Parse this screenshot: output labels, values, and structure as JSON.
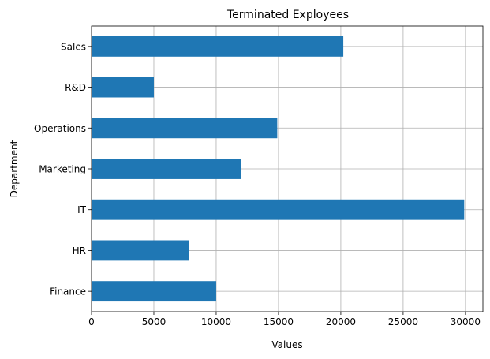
{
  "chart_data": {
    "type": "bar",
    "orientation": "horizontal",
    "title": "Terminated Exployees",
    "xlabel": "Values",
    "ylabel": "Department",
    "categories": [
      "Finance",
      "HR",
      "IT",
      "Marketing",
      "Operations",
      "R&D",
      "Sales"
    ],
    "values": [
      10000,
      7800,
      29900,
      12000,
      14900,
      5000,
      20200
    ],
    "xlim": [
      0,
      31400
    ],
    "xticks": [
      0,
      5000,
      10000,
      15000,
      20000,
      25000,
      30000
    ],
    "grid": true,
    "bar_color": "#1f77b4"
  }
}
